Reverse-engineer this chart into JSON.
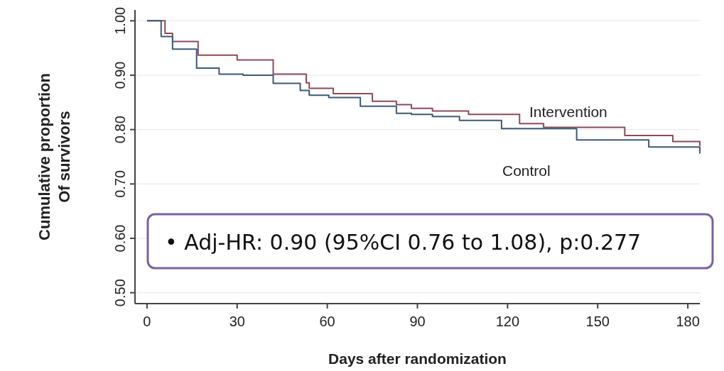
{
  "chart_data": {
    "type": "step",
    "xlabel": "Days after randomization",
    "ylabel": "Cumulative proportion\nOf survivors",
    "xlim": [
      -4,
      184
    ],
    "ylim": [
      0.48,
      1.02
    ],
    "xticks": [
      0,
      30,
      60,
      90,
      120,
      150,
      180
    ],
    "yticks": [
      {
        "value": 0.5,
        "label": "0.50"
      },
      {
        "value": 0.6,
        "label": "0.60"
      },
      {
        "value": 0.7,
        "label": "0.70"
      },
      {
        "value": 0.8,
        "label": "0.80"
      },
      {
        "value": 0.9,
        "label": "0.90"
      },
      {
        "value": 1.0,
        "label": "1.00"
      }
    ],
    "grid": "y",
    "legend": false,
    "line_style": "solid",
    "marker": "none",
    "series": [
      {
        "name": "Intervention",
        "color": "#8e4a55",
        "x": [
          0,
          6,
          8.5,
          17,
          30,
          42,
          53,
          54,
          62,
          75,
          83,
          88,
          95,
          107,
          124,
          132,
          159,
          175,
          184
        ],
        "values": [
          1.0,
          0.977,
          0.962,
          0.937,
          0.928,
          0.902,
          0.886,
          0.876,
          0.866,
          0.852,
          0.846,
          0.839,
          0.834,
          0.828,
          0.811,
          0.804,
          0.789,
          0.778,
          0.77
        ]
      },
      {
        "name": "Control",
        "color": "#3d5a78",
        "x": [
          0,
          4.7,
          8.5,
          16.5,
          24,
          32,
          42,
          51,
          54,
          60.5,
          71,
          83,
          88,
          95,
          104,
          118,
          143,
          167,
          184
        ],
        "values": [
          1.0,
          0.971,
          0.948,
          0.913,
          0.902,
          0.9,
          0.885,
          0.872,
          0.863,
          0.859,
          0.843,
          0.83,
          0.828,
          0.824,
          0.817,
          0.802,
          0.781,
          0.768,
          0.756
        ]
      }
    ],
    "annotations": [
      "• Adj-HR: 0.90 (95%CI 0.76 to 1.08), p:0.277"
    ]
  }
}
